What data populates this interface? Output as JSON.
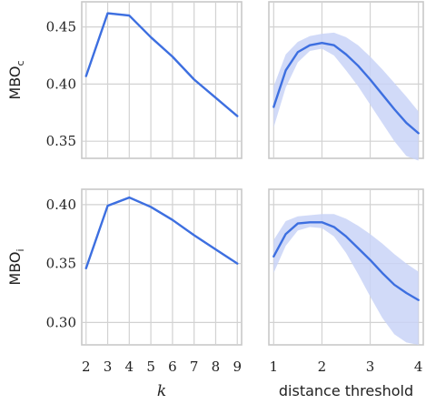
{
  "chart_data": [
    {
      "type": "line",
      "panel": "top-left",
      "ylabel": "MBO",
      "ylabel_sub": "c",
      "xlabel": "",
      "x": [
        2,
        3,
        4,
        5,
        6,
        7,
        8,
        9
      ],
      "xlim": [
        1.8,
        9.2
      ],
      "ylim": [
        0.335,
        0.472
      ],
      "yticks": [
        0.35,
        0.4,
        0.45
      ],
      "ytick_labels": [
        "0.35",
        "0.40",
        "0.45"
      ],
      "series": [
        {
          "values": [
            0.407,
            0.462,
            0.46,
            0.441,
            0.424,
            0.404,
            0.388,
            0.372
          ],
          "lower": [
            0.406,
            0.461,
            0.459,
            0.44,
            0.423,
            0.403,
            0.387,
            0.371
          ],
          "upper": [
            0.408,
            0.463,
            0.461,
            0.442,
            0.425,
            0.405,
            0.389,
            0.373
          ]
        }
      ],
      "line_color": "#3d6fe0",
      "band_color": "#c9d3f7",
      "grid": true
    },
    {
      "type": "line",
      "panel": "top-right",
      "xlabel": "",
      "x": [
        1.0,
        1.25,
        1.5,
        1.75,
        2.0,
        2.25,
        2.5,
        2.75,
        3.0,
        3.25,
        3.5,
        3.75,
        4.0
      ],
      "xlim": [
        0.9,
        4.1
      ],
      "ylim": [
        0.335,
        0.472
      ],
      "series": [
        {
          "values": [
            0.38,
            0.412,
            0.428,
            0.434,
            0.436,
            0.434,
            0.426,
            0.416,
            0.404,
            0.391,
            0.378,
            0.366,
            0.357
          ],
          "lower": [
            0.362,
            0.397,
            0.419,
            0.429,
            0.431,
            0.425,
            0.412,
            0.398,
            0.382,
            0.366,
            0.35,
            0.337,
            0.333
          ],
          "upper": [
            0.398,
            0.426,
            0.437,
            0.442,
            0.444,
            0.445,
            0.441,
            0.434,
            0.424,
            0.413,
            0.401,
            0.389,
            0.376
          ]
        }
      ],
      "line_color": "#3d6fe0",
      "band_color": "#c9d3f7",
      "grid": true
    },
    {
      "type": "line",
      "panel": "bottom-left",
      "ylabel": "MBO",
      "ylabel_sub": "i",
      "xlabel": "k",
      "x": [
        2,
        3,
        4,
        5,
        6,
        7,
        8,
        9
      ],
      "xticks": [
        2,
        3,
        4,
        5,
        6,
        7,
        8,
        9
      ],
      "xtick_labels": [
        "2",
        "3",
        "4",
        "5",
        "6",
        "7",
        "8",
        "9"
      ],
      "xlim": [
        1.8,
        9.2
      ],
      "ylim": [
        0.281,
        0.413
      ],
      "yticks": [
        0.3,
        0.35,
        0.4
      ],
      "ytick_labels": [
        "0.30",
        "0.35",
        "0.40"
      ],
      "series": [
        {
          "values": [
            0.346,
            0.399,
            0.406,
            0.398,
            0.387,
            0.374,
            0.362,
            0.35
          ],
          "lower": [
            0.345,
            0.398,
            0.405,
            0.397,
            0.386,
            0.373,
            0.361,
            0.349
          ],
          "upper": [
            0.347,
            0.4,
            0.407,
            0.399,
            0.388,
            0.375,
            0.363,
            0.351
          ]
        }
      ],
      "line_color": "#3d6fe0",
      "band_color": "#c9d3f7",
      "grid": true
    },
    {
      "type": "line",
      "panel": "bottom-right",
      "xlabel": "distance threshold",
      "x": [
        1.0,
        1.25,
        1.5,
        1.75,
        2.0,
        2.25,
        2.5,
        2.75,
        3.0,
        3.25,
        3.5,
        3.75,
        4.0
      ],
      "xticks": [
        1,
        2,
        3,
        4
      ],
      "xtick_labels": [
        "1",
        "2",
        "3",
        "4"
      ],
      "xlim": [
        0.9,
        4.1
      ],
      "ylim": [
        0.281,
        0.413
      ],
      "series": [
        {
          "values": [
            0.356,
            0.375,
            0.384,
            0.385,
            0.385,
            0.381,
            0.373,
            0.363,
            0.353,
            0.342,
            0.332,
            0.325,
            0.319
          ],
          "lower": [
            0.342,
            0.365,
            0.378,
            0.381,
            0.38,
            0.373,
            0.359,
            0.341,
            0.322,
            0.304,
            0.29,
            0.283,
            0.281
          ],
          "upper": [
            0.37,
            0.386,
            0.39,
            0.391,
            0.392,
            0.392,
            0.388,
            0.382,
            0.375,
            0.367,
            0.358,
            0.35,
            0.343
          ]
        }
      ],
      "line_color": "#3d6fe0",
      "band_color": "#c9d3f7",
      "grid": true
    }
  ]
}
